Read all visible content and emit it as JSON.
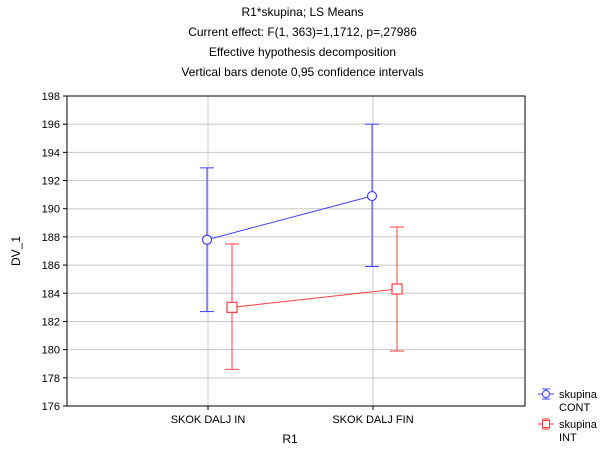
{
  "chart_data": {
    "type": "line",
    "title_lines": [
      "R1*skupina; LS Means",
      "Current effect: F(1, 363)=1,1712, p=,27986",
      "Effective hypothesis decomposition",
      "Vertical bars denote 0,95 confidence intervals"
    ],
    "xlabel": "R1",
    "ylabel": "DV_1",
    "categories": [
      "SKOK DALJ IN",
      "SKOK DALJ FIN"
    ],
    "ylim": [
      176,
      198
    ],
    "yticks": [
      176,
      178,
      180,
      182,
      184,
      186,
      188,
      190,
      192,
      194,
      196,
      198
    ],
    "grid": true,
    "legend_position": "bottom-right",
    "series": [
      {
        "name": "skupina CONT",
        "legend_line1": "skupina",
        "legend_line2": "CONT",
        "color": "#4040ff",
        "marker": "circle",
        "values": [
          187.8,
          190.9
        ],
        "ci_low": [
          182.7,
          185.9
        ],
        "ci_high": [
          192.9,
          196.0
        ]
      },
      {
        "name": "skupina INT",
        "legend_line1": "skupina",
        "legend_line2": "INT",
        "color": "#ff4040",
        "marker": "square",
        "values": [
          183.0,
          184.3
        ],
        "ci_low": [
          178.6,
          179.9
        ],
        "ci_high": [
          187.5,
          188.7
        ]
      }
    ]
  }
}
